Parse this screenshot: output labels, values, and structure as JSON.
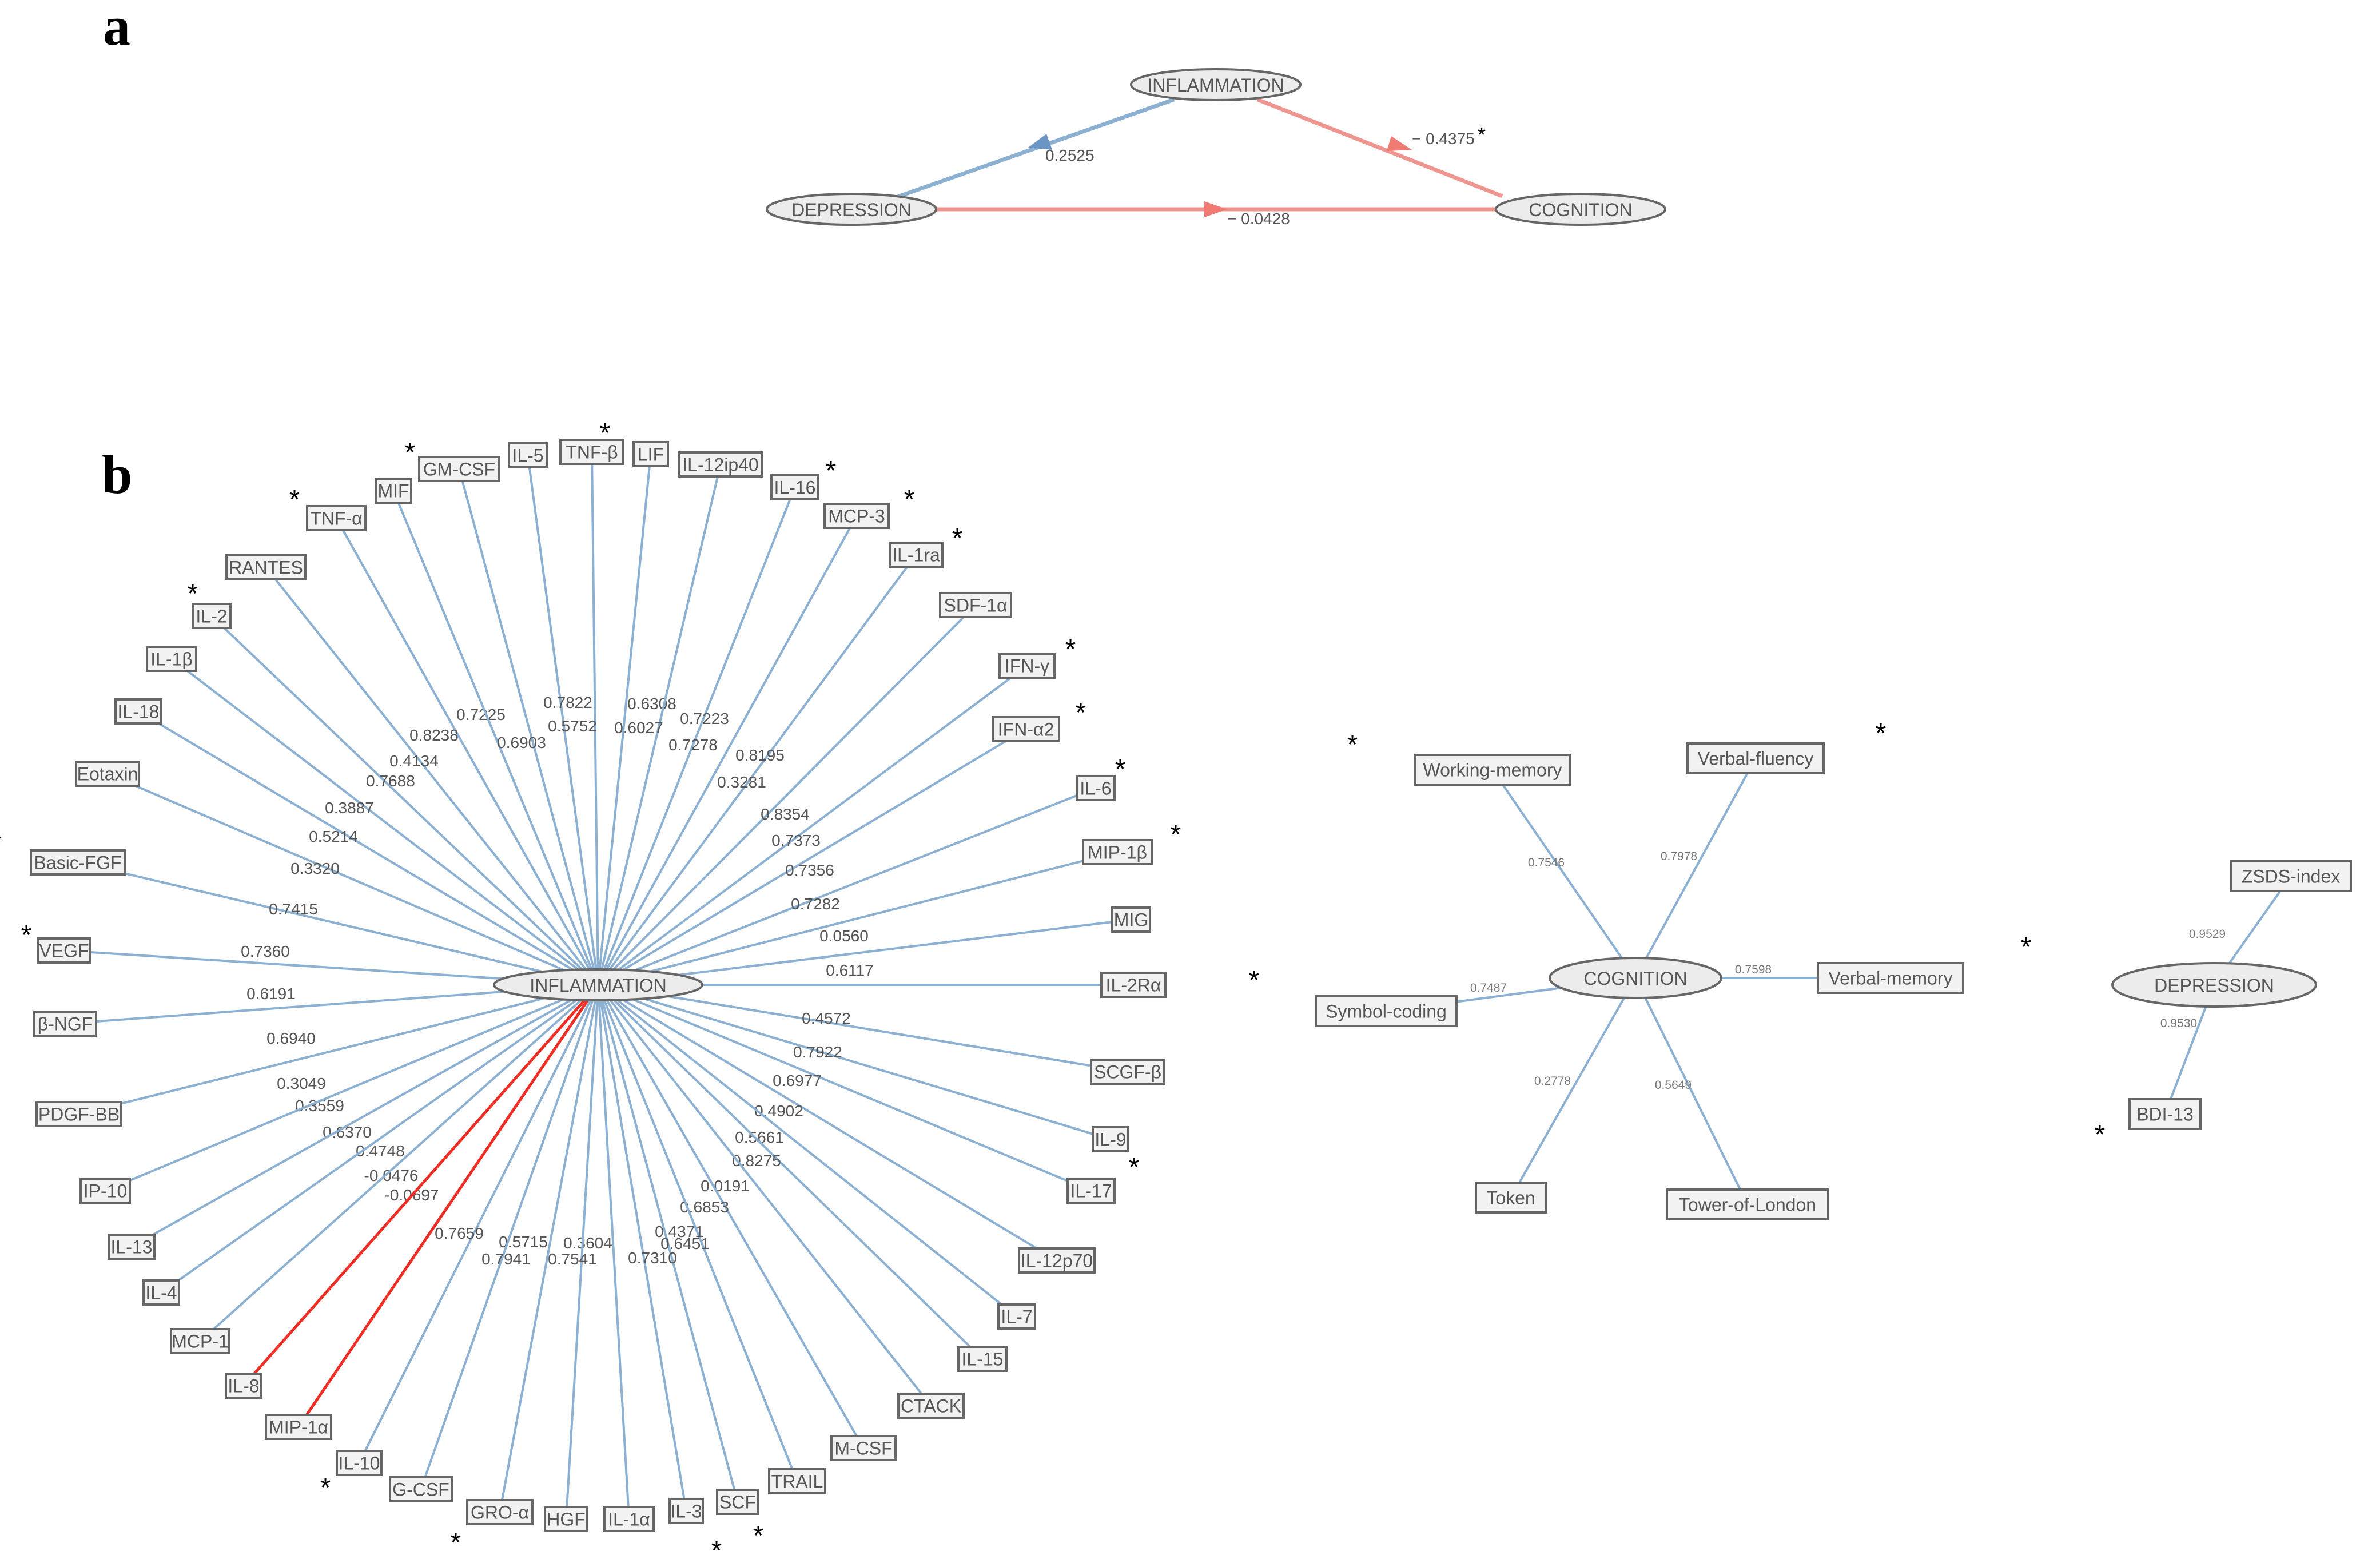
{
  "panels": {
    "a": "a",
    "b": "b"
  },
  "colors": {
    "positive": "#8bb0d2",
    "negative": "#ef9590",
    "strong_negative": "#ee2e24",
    "positive_arrow": "#6b96c4",
    "negative_arrow": "#f07a74"
  },
  "panel_a": {
    "nodes": {
      "inflammation": "INFLAMMATION",
      "depression": "DEPRESSION",
      "cognition": "COGNITION"
    },
    "edges": [
      {
        "from": "INFLAMMATION",
        "to": "DEPRESSION",
        "label": "0.2525",
        "sign": "positive"
      },
      {
        "from": "INFLAMMATION",
        "to": "COGNITION",
        "label": "− 0.4375",
        "sign": "negative",
        "significant": true
      },
      {
        "from": "DEPRESSION",
        "to": "COGNITION",
        "label": "− 0.0428",
        "sign": "negative"
      }
    ],
    "star": "*"
  },
  "inflammation": {
    "center": "INFLAMMATION",
    "markers": [
      {
        "name": "GM-CSF",
        "value": "0.7225",
        "star": "*"
      },
      {
        "name": "IL-5",
        "value": "0.7822",
        "star": ""
      },
      {
        "name": "TNF-β",
        "value": "0.5752",
        "star": "*"
      },
      {
        "name": "LIF",
        "value": "0.6308",
        "star": ""
      },
      {
        "name": "IL-12ip40",
        "value": "0.6027",
        "star": ""
      },
      {
        "name": "IL-16",
        "value": "0.7223",
        "star": "*"
      },
      {
        "name": "MCP-3",
        "value": "0.7278",
        "star": "*"
      },
      {
        "name": "IL-1ra",
        "value": "0.8195",
        "star": "*"
      },
      {
        "name": "SDF-1α",
        "value": "0.3281",
        "star": ""
      },
      {
        "name": "IFN-γ",
        "value": "0.8354",
        "star": "*"
      },
      {
        "name": "IFN-α2",
        "value": "0.7373",
        "star": "*"
      },
      {
        "name": "IL-6",
        "value": "0.7356",
        "star": "*"
      },
      {
        "name": "MIP-1β",
        "value": "0.7282",
        "star": "*"
      },
      {
        "name": "MIG",
        "value": "0.0560",
        "star": ""
      },
      {
        "name": "IL-2Rα",
        "value": "0.6117",
        "star": ""
      },
      {
        "name": "SCGF-β",
        "value": "0.4572",
        "star": ""
      },
      {
        "name": "IL-9",
        "value": "0.7922",
        "star": ""
      },
      {
        "name": "IL-17",
        "value": "0.6977",
        "star": "*"
      },
      {
        "name": "IL-12p70",
        "value": "0.4902",
        "star": ""
      },
      {
        "name": "IL-7",
        "value": "0.5661",
        "star": ""
      },
      {
        "name": "IL-15",
        "value": "0.8275",
        "star": ""
      },
      {
        "name": "CTACK",
        "value": "0.0191",
        "star": ""
      },
      {
        "name": "M-CSF",
        "value": "0.6853",
        "star": ""
      },
      {
        "name": "TRAIL",
        "value": "0.4371",
        "star": ""
      },
      {
        "name": "SCF",
        "value": "0.6451",
        "star": "*"
      },
      {
        "name": "IL-3",
        "value": "0.7310",
        "star": "*"
      },
      {
        "name": "IL-1α",
        "value": "0.3604",
        "star": ""
      },
      {
        "name": "HGF",
        "value": "0.7541",
        "star": ""
      },
      {
        "name": "GRO-α",
        "value": "0.5715",
        "star": "*"
      },
      {
        "name": "G-CSF",
        "value": "0.7941",
        "star": ""
      },
      {
        "name": "IL-10",
        "value": "0.7659",
        "star": "*"
      },
      {
        "name": "MIP-1α",
        "value": "-0.0697",
        "star": ""
      },
      {
        "name": "IL-8",
        "value": "-0.0476",
        "star": ""
      },
      {
        "name": "MCP-1",
        "value": "0.4748",
        "star": ""
      },
      {
        "name": "IL-4",
        "value": "0.6370",
        "star": ""
      },
      {
        "name": "IL-13",
        "value": "0.3559",
        "star": ""
      },
      {
        "name": "IP-10",
        "value": "0.3049",
        "star": ""
      },
      {
        "name": "PDGF-BB",
        "value": "0.6940",
        "star": ""
      },
      {
        "name": "β-NGF",
        "value": "0.6191",
        "star": ""
      },
      {
        "name": "VEGF",
        "value": "0.7360",
        "star": "*"
      },
      {
        "name": "Basic-FGF",
        "value": "0.7415",
        "star": "*"
      },
      {
        "name": "Eotaxin",
        "value": "0.3320",
        "star": ""
      },
      {
        "name": "IL-18",
        "value": "0.5214",
        "star": ""
      },
      {
        "name": "IL-1β",
        "value": "0.3887",
        "star": ""
      },
      {
        "name": "IL-2",
        "value": "0.7688",
        "star": "*"
      },
      {
        "name": "RANTES",
        "value": "0.4134",
        "star": ""
      },
      {
        "name": "TNF-α",
        "value": "0.8238",
        "star": "*"
      },
      {
        "name": "MIF",
        "value": "0.6903",
        "star": ""
      }
    ]
  },
  "cognition": {
    "center": "COGNITION",
    "markers": [
      {
        "name": "Working-memory",
        "value": "0.7546",
        "star": "*"
      },
      {
        "name": "Verbal-fluency",
        "value": "0.7978",
        "star": "*"
      },
      {
        "name": "Verbal-memory",
        "value": "0.7598",
        "star": "*"
      },
      {
        "name": "Tower-of-London",
        "value": "0.5649",
        "star": ""
      },
      {
        "name": "Token",
        "value": "0.2778",
        "star": ""
      },
      {
        "name": "Symbol-coding",
        "value": "0.7487",
        "star": "*"
      }
    ]
  },
  "depression": {
    "center": "DEPRESSION",
    "markers": [
      {
        "name": "ZSDS-index",
        "value": "0.9529",
        "star": "*"
      },
      {
        "name": "BDI-13",
        "value": "0.9530",
        "star": "*"
      }
    ]
  }
}
